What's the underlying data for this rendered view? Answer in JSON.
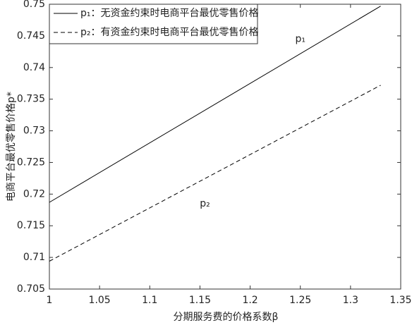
{
  "chart_data": {
    "type": "line",
    "xlabel": "分期服务费的价格系数β",
    "ylabel": "电商平台最优零售价格p*",
    "x": [
      1,
      1.33
    ],
    "series": [
      {
        "name": "p₁：无资金约束时电商平台最优零售价格",
        "color": "#000000",
        "dash": "solid",
        "values": [
          0.7187,
          0.7497
        ]
      },
      {
        "name": "p₂：有资金约束时电商平台最优零售价格",
        "color": "#000000",
        "dash": "dashed",
        "values": [
          0.7094,
          0.7372
        ]
      }
    ],
    "annotations": [
      {
        "text": "p₁",
        "x": 1.25,
        "y": 0.7445
      },
      {
        "text": "p₂",
        "x": 1.155,
        "y": 0.7185
      }
    ],
    "xlim": [
      1,
      1.35
    ],
    "xticks": [
      1,
      1.05,
      1.1,
      1.15,
      1.2,
      1.25,
      1.3,
      1.35
    ],
    "ylim": [
      0.705,
      0.75
    ],
    "yticks": [
      0.705,
      0.71,
      0.715,
      0.72,
      0.725,
      0.73,
      0.735,
      0.74,
      0.745,
      0.75
    ],
    "legend": "top-left"
  }
}
